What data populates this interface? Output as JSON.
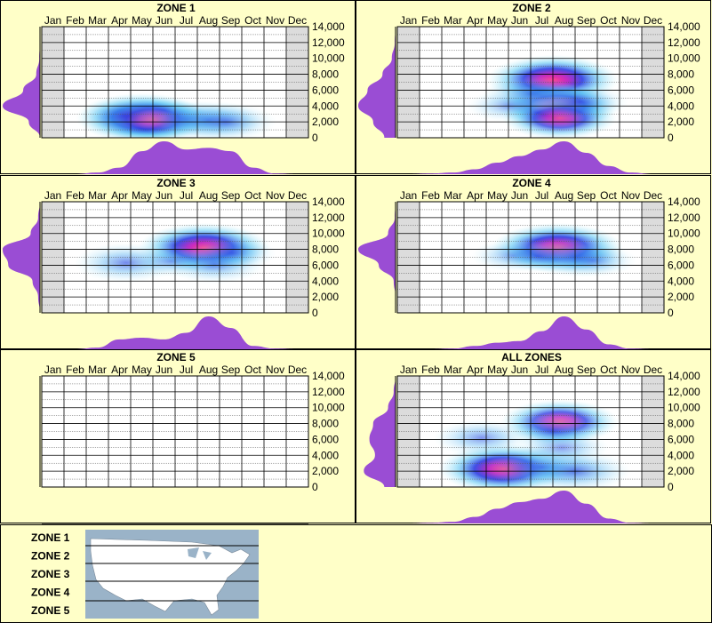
{
  "months": [
    "Jan",
    "Feb",
    "Mar",
    "Apr",
    "May",
    "Jun",
    "Jul",
    "Aug",
    "Sep",
    "Oct",
    "Nov",
    "Dec"
  ],
  "y_ticks": [
    "14,000",
    "12,000",
    "10,000",
    "8,000",
    "6,000",
    "4,000",
    "2,000",
    "0"
  ],
  "chart_data": [
    {
      "type": "heatmap",
      "title": "ZONE 1",
      "x_categories": [
        "Jan",
        "Feb",
        "Mar",
        "Apr",
        "May",
        "Jun",
        "Jul",
        "Aug",
        "Sep",
        "Oct",
        "Nov",
        "Dec"
      ],
      "ylim": [
        0,
        14000
      ],
      "greyed_months": [
        "Jan",
        "Dec"
      ],
      "density": [
        {
          "month": 4.5,
          "elevation": 2500,
          "intensity": 1.0
        },
        {
          "month": 5.0,
          "elevation": 2300,
          "intensity": 0.8
        },
        {
          "month": 6.5,
          "elevation": 2300,
          "intensity": 0.55
        },
        {
          "month": 7.5,
          "elevation": 2200,
          "intensity": 0.6
        },
        {
          "month": 8.3,
          "elevation": 2000,
          "intensity": 0.55
        },
        {
          "month": 3.7,
          "elevation": 2800,
          "intensity": 0.35
        }
      ],
      "month_profile": [
        0,
        0,
        0.05,
        0.2,
        0.7,
        1.0,
        0.75,
        0.8,
        0.7,
        0.2,
        0.02,
        0
      ],
      "elevation_profile": [
        0,
        0.3,
        1.0,
        0.45,
        0.1,
        0.02,
        0,
        0
      ]
    },
    {
      "type": "heatmap",
      "title": "ZONE 2",
      "x_categories": [
        "Jan",
        "Feb",
        "Mar",
        "Apr",
        "May",
        "Jun",
        "Jul",
        "Aug",
        "Sep",
        "Oct",
        "Nov",
        "Dec"
      ],
      "ylim": [
        0,
        14000
      ],
      "greyed_months": [
        "Jan",
        "Dec"
      ],
      "density": [
        {
          "month": 7.0,
          "elevation": 7300,
          "intensity": 1.0
        },
        {
          "month": 7.2,
          "elevation": 4000,
          "intensity": 0.85
        },
        {
          "month": 7.3,
          "elevation": 2500,
          "intensity": 0.75
        },
        {
          "month": 6.0,
          "elevation": 5500,
          "intensity": 0.5
        },
        {
          "month": 8.2,
          "elevation": 4500,
          "intensity": 0.5
        },
        {
          "month": 5.0,
          "elevation": 4000,
          "intensity": 0.3
        }
      ],
      "month_profile": [
        0,
        0.02,
        0.05,
        0.15,
        0.35,
        0.55,
        0.75,
        1.0,
        0.65,
        0.25,
        0.05,
        0
      ],
      "elevation_profile": [
        0.3,
        0.6,
        1.0,
        0.75,
        0.35,
        0.1,
        0.02,
        0
      ]
    },
    {
      "type": "heatmap",
      "title": "ZONE 3",
      "x_categories": [
        "Jan",
        "Feb",
        "Mar",
        "Apr",
        "May",
        "Jun",
        "Jul",
        "Aug",
        "Sep",
        "Oct",
        "Nov",
        "Dec"
      ],
      "ylim": [
        0,
        14000
      ],
      "greyed_months": [
        "Jan",
        "Dec"
      ],
      "density": [
        {
          "month": 7.3,
          "elevation": 8200,
          "intensity": 1.0
        },
        {
          "month": 3.8,
          "elevation": 6300,
          "intensity": 0.6
        },
        {
          "month": 7.8,
          "elevation": 6100,
          "intensity": 0.55
        },
        {
          "month": 5.8,
          "elevation": 6500,
          "intensity": 0.3
        },
        {
          "month": 8.6,
          "elevation": 7500,
          "intensity": 0.35
        }
      ],
      "month_profile": [
        0,
        0,
        0.05,
        0.3,
        0.35,
        0.3,
        0.5,
        1.0,
        0.65,
        0.1,
        0.02,
        0
      ],
      "elevation_profile": [
        0,
        0.05,
        0.2,
        0.85,
        1.0,
        0.25,
        0.05,
        0
      ]
    },
    {
      "type": "heatmap",
      "title": "ZONE 4",
      "x_categories": [
        "Jan",
        "Feb",
        "Mar",
        "Apr",
        "May",
        "Jun",
        "Jul",
        "Aug",
        "Sep",
        "Oct",
        "Nov",
        "Dec"
      ],
      "ylim": [
        0,
        14000
      ],
      "greyed_months": [
        "Jan",
        "Dec"
      ],
      "density": [
        {
          "month": 7.2,
          "elevation": 8200,
          "intensity": 1.0
        },
        {
          "month": 8.0,
          "elevation": 7000,
          "intensity": 0.6
        },
        {
          "month": 5.2,
          "elevation": 7200,
          "intensity": 0.3
        },
        {
          "month": 6.3,
          "elevation": 7100,
          "intensity": 0.3
        },
        {
          "month": 8.8,
          "elevation": 6600,
          "intensity": 0.35
        }
      ],
      "month_profile": [
        0,
        0,
        0.02,
        0.1,
        0.2,
        0.25,
        0.55,
        1.0,
        0.6,
        0.15,
        0.02,
        0
      ],
      "elevation_profile": [
        0,
        0,
        0.05,
        0.45,
        1.0,
        0.2,
        0.02,
        0
      ]
    },
    {
      "type": "heatmap",
      "title": "ZONE 5",
      "x_categories": [
        "Jan",
        "Feb",
        "Mar",
        "Apr",
        "May",
        "Jun",
        "Jul",
        "Aug",
        "Sep",
        "Oct",
        "Nov",
        "Dec"
      ],
      "ylim": [
        0,
        14000
      ],
      "greyed_months": [],
      "density": [],
      "month_profile": [],
      "elevation_profile": []
    },
    {
      "type": "heatmap",
      "title": "ALL ZONES",
      "x_categories": [
        "Jan",
        "Feb",
        "Mar",
        "Apr",
        "May",
        "Jun",
        "Jul",
        "Aug",
        "Sep",
        "Oct",
        "Nov",
        "Dec"
      ],
      "ylim": [
        0,
        14000
      ],
      "greyed_months": [
        "Jan",
        "Dec"
      ],
      "density": [
        {
          "month": 4.8,
          "elevation": 2300,
          "intensity": 1.0
        },
        {
          "month": 6.5,
          "elevation": 2500,
          "intensity": 0.7
        },
        {
          "month": 8.0,
          "elevation": 2000,
          "intensity": 0.7
        },
        {
          "month": 7.3,
          "elevation": 8200,
          "intensity": 0.8
        },
        {
          "month": 3.8,
          "elevation": 6200,
          "intensity": 0.5
        },
        {
          "month": 7.4,
          "elevation": 5000,
          "intensity": 0.45
        },
        {
          "month": 7.0,
          "elevation": 7000,
          "intensity": 0.4
        }
      ],
      "month_profile": [
        0,
        0.02,
        0.05,
        0.2,
        0.45,
        0.65,
        0.75,
        1.0,
        0.6,
        0.15,
        0.02,
        0
      ],
      "elevation_profile": [
        0.3,
        0.85,
        0.55,
        0.7,
        0.6,
        0.2,
        0.05,
        0
      ]
    }
  ],
  "legend": {
    "zones": [
      "ZONE 1",
      "ZONE 2",
      "ZONE 3",
      "ZONE 4",
      "ZONE 5"
    ],
    "map": "map of the United States divided into five horizontal bands"
  },
  "colors": {
    "background": "#ffffc8",
    "profile": "#9a4dd4",
    "greyed_month": "#dcdcdc",
    "heat_low": "#d8f8f8",
    "heat_mid": "#2040e0",
    "heat_high": "#ff4080"
  }
}
